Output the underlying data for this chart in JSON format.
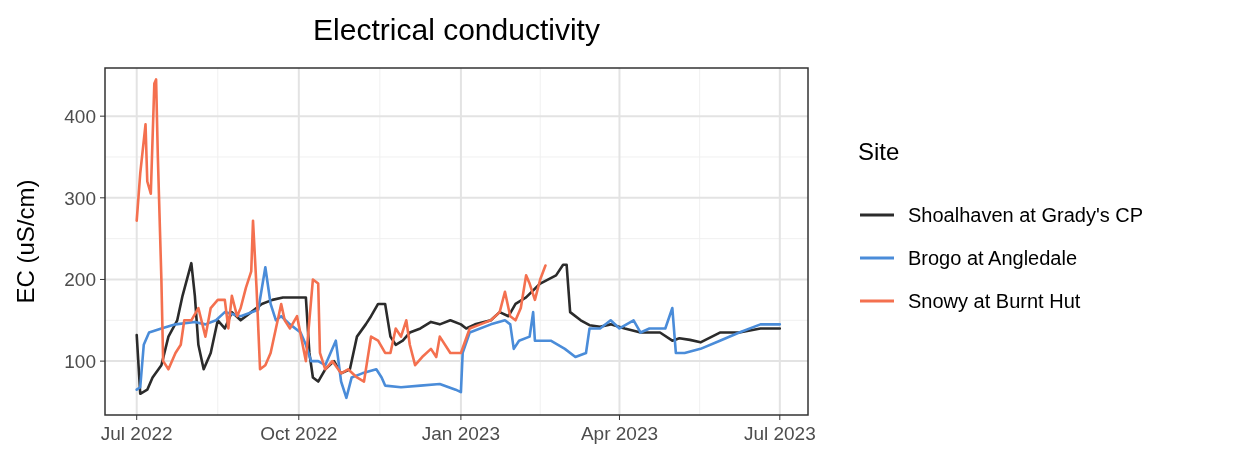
{
  "chart_data": {
    "type": "line",
    "title": "Electrical conductivity",
    "ylabel": "EC (uS/cm)",
    "legend_title": "Site",
    "xlim": [
      "2022-06-13",
      "2023-07-17"
    ],
    "ylim": [
      34,
      459
    ],
    "xticks": [
      {
        "value": "2022-07-01",
        "label": "Jul 2022"
      },
      {
        "value": "2022-10-01",
        "label": "Oct 2022"
      },
      {
        "value": "2023-01-01",
        "label": "Jan 2023"
      },
      {
        "value": "2023-04-01",
        "label": "Apr 2023"
      },
      {
        "value": "2023-07-01",
        "label": "Jul 2023"
      }
    ],
    "yticks": [
      100,
      200,
      300,
      400
    ],
    "grid": true,
    "legend": "right",
    "line_style": "solid",
    "series": [
      {
        "name": "Shoalhaven at Grady's CP",
        "color": "#2b2b2b",
        "x": [
          "2022-07-01",
          "2022-07-03",
          "2022-07-07",
          "2022-07-10",
          "2022-07-15",
          "2022-07-19",
          "2022-07-24",
          "2022-07-27",
          "2022-08-01",
          "2022-08-03",
          "2022-08-05",
          "2022-08-08",
          "2022-08-12",
          "2022-08-16",
          "2022-08-20",
          "2022-08-24",
          "2022-08-29",
          "2022-09-04",
          "2022-09-10",
          "2022-09-16",
          "2022-09-22",
          "2022-10-05",
          "2022-10-07",
          "2022-10-09",
          "2022-10-12",
          "2022-10-16",
          "2022-10-21",
          "2022-10-25",
          "2022-10-30",
          "2022-11-03",
          "2022-11-08",
          "2022-11-11",
          "2022-11-15",
          "2022-11-19",
          "2022-11-22",
          "2022-11-25",
          "2022-11-29",
          "2022-12-03",
          "2022-12-09",
          "2022-12-15",
          "2022-12-20",
          "2022-12-26",
          "2023-01-01",
          "2023-01-04",
          "2023-01-09",
          "2023-01-18",
          "2023-01-23",
          "2023-01-28",
          "2023-02-01",
          "2023-02-07",
          "2023-02-15",
          "2023-02-24",
          "2023-02-28",
          "2023-03-02",
          "2023-03-04",
          "2023-03-10",
          "2023-03-15",
          "2023-03-21",
          "2023-03-27",
          "2023-04-04",
          "2023-04-13",
          "2023-04-24",
          "2023-05-01",
          "2023-05-05",
          "2023-05-11",
          "2023-05-17",
          "2023-05-28",
          "2023-06-08",
          "2023-06-20",
          "2023-07-01"
        ],
        "values": [
          132,
          60,
          65,
          80,
          95,
          130,
          150,
          180,
          220,
          180,
          120,
          90,
          110,
          150,
          140,
          160,
          150,
          160,
          170,
          175,
          178,
          178,
          110,
          80,
          75,
          90,
          100,
          85,
          90,
          130,
          145,
          155,
          170,
          170,
          130,
          120,
          125,
          135,
          140,
          148,
          145,
          150,
          145,
          140,
          145,
          150,
          160,
          155,
          170,
          178,
          195,
          205,
          218,
          218,
          160,
          150,
          144,
          142,
          145,
          140,
          135,
          135,
          125,
          128,
          126,
          123,
          135,
          135,
          140,
          140
        ]
      },
      {
        "name": "Brogo at Angledale",
        "color": "#4a8cd9",
        "x": [
          "2022-07-01",
          "2022-07-03",
          "2022-07-05",
          "2022-07-08",
          "2022-07-15",
          "2022-07-23",
          "2022-08-03",
          "2022-08-09",
          "2022-08-15",
          "2022-08-20",
          "2022-08-29",
          "2022-09-08",
          "2022-09-12",
          "2022-09-15",
          "2022-09-18",
          "2022-09-21",
          "2022-09-26",
          "2022-10-02",
          "2022-10-05",
          "2022-10-08",
          "2022-10-12",
          "2022-10-16",
          "2022-10-22",
          "2022-10-25",
          "2022-10-28",
          "2022-10-31",
          "2022-11-06",
          "2022-11-14",
          "2022-11-17",
          "2022-11-19",
          "2022-11-28",
          "2022-12-09",
          "2022-12-20",
          "2022-12-29",
          "2023-01-01",
          "2023-01-02",
          "2023-01-06",
          "2023-01-18",
          "2023-01-26",
          "2023-01-29",
          "2023-01-31",
          "2023-02-03",
          "2023-02-09",
          "2023-02-11",
          "2023-02-12",
          "2023-02-21",
          "2023-03-01",
          "2023-03-07",
          "2023-03-13",
          "2023-03-15",
          "2023-03-21",
          "2023-03-27",
          "2023-04-01",
          "2023-04-09",
          "2023-04-13",
          "2023-04-18",
          "2023-04-27",
          "2023-05-01",
          "2023-05-03",
          "2023-05-08",
          "2023-05-17",
          "2023-05-28",
          "2023-06-08",
          "2023-06-20",
          "2023-07-01"
        ],
        "values": [
          65,
          68,
          120,
          135,
          140,
          145,
          148,
          145,
          150,
          160,
          155,
          163,
          215,
          170,
          150,
          155,
          145,
          135,
          120,
          100,
          100,
          95,
          125,
          75,
          55,
          80,
          85,
          90,
          80,
          70,
          68,
          70,
          72,
          65,
          62,
          110,
          135,
          145,
          150,
          145,
          115,
          125,
          130,
          160,
          125,
          125,
          115,
          105,
          110,
          140,
          140,
          150,
          140,
          150,
          135,
          140,
          140,
          165,
          110,
          110,
          115,
          125,
          135,
          145,
          145
        ]
      },
      {
        "name": "Snowy at Burnt Hut",
        "color": "#f4704f",
        "x": [
          "2022-07-01",
          "2022-07-03",
          "2022-07-06",
          "2022-07-07",
          "2022-07-09",
          "2022-07-11",
          "2022-07-12",
          "2022-07-13",
          "2022-07-15",
          "2022-07-16",
          "2022-07-19",
          "2022-07-23",
          "2022-07-26",
          "2022-07-28",
          "2022-08-01",
          "2022-08-05",
          "2022-08-09",
          "2022-08-12",
          "2022-08-16",
          "2022-08-20",
          "2022-08-22",
          "2022-08-24",
          "2022-08-27",
          "2022-08-29",
          "2022-09-01",
          "2022-09-04",
          "2022-09-05",
          "2022-09-07",
          "2022-09-09",
          "2022-09-12",
          "2022-09-15",
          "2022-09-21",
          "2022-09-23",
          "2022-09-26",
          "2022-09-30",
          "2022-10-05",
          "2022-10-09",
          "2022-10-12",
          "2022-10-13",
          "2022-10-16",
          "2022-10-20",
          "2022-10-25",
          "2022-10-29",
          "2022-11-03",
          "2022-11-07",
          "2022-11-11",
          "2022-11-15",
          "2022-11-19",
          "2022-11-22",
          "2022-11-25",
          "2022-11-28",
          "2022-12-01",
          "2022-12-03",
          "2022-12-06",
          "2022-12-10",
          "2022-12-15",
          "2022-12-18",
          "2022-12-20",
          "2022-12-26",
          "2023-01-01",
          "2023-01-06",
          "2023-01-12",
          "2023-01-18",
          "2023-01-23",
          "2023-01-26",
          "2023-01-29",
          "2023-02-01",
          "2023-02-04",
          "2023-02-07",
          "2023-02-09",
          "2023-02-12",
          "2023-02-15",
          "2023-02-18"
        ],
        "values": [
          272,
          330,
          390,
          320,
          305,
          440,
          445,
          350,
          200,
          100,
          90,
          110,
          120,
          150,
          150,
          165,
          130,
          165,
          175,
          175,
          140,
          180,
          155,
          165,
          190,
          210,
          272,
          190,
          90,
          95,
          110,
          170,
          150,
          140,
          155,
          100,
          200,
          195,
          110,
          90,
          100,
          85,
          90,
          80,
          75,
          130,
          125,
          110,
          110,
          140,
          130,
          150,
          120,
          95,
          105,
          115,
          105,
          130,
          110,
          110,
          140,
          145,
          150,
          160,
          185,
          155,
          150,
          165,
          205,
          195,
          175,
          200,
          217
        ]
      }
    ]
  }
}
